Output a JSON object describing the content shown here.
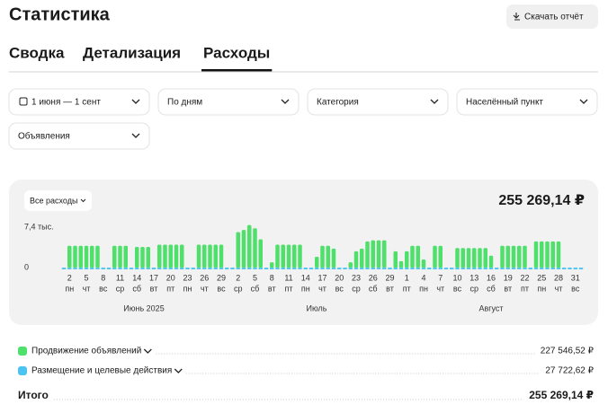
{
  "header": {
    "title": "Статистика",
    "download": "Скачать отчёт"
  },
  "tabs": {
    "items": [
      "Сводка",
      "Детализация",
      "Расходы"
    ],
    "active": 2
  },
  "filters": [
    "1 июня — 1 сент",
    "По дням",
    "Категория",
    "Населённый пункт",
    "Объявления"
  ],
  "card": {
    "dropdown": "Все расходы",
    "total": "255 269,14 ₽"
  },
  "chart_data": {
    "type": "bar",
    "stacked": true,
    "ylim": [
      0,
      8200
    ],
    "yticks": [
      0,
      {
        "value": 7400,
        "label": "7,4 тыс."
      }
    ],
    "categories": [
      null,
      "2",
      null,
      null,
      "5",
      null,
      null,
      "8",
      null,
      null,
      "11",
      null,
      null,
      "14",
      null,
      null,
      "17",
      null,
      null,
      "20",
      null,
      null,
      "23",
      null,
      null,
      "26",
      null,
      null,
      "29",
      null,
      null,
      "2",
      null,
      null,
      "5",
      null,
      null,
      "8",
      null,
      null,
      "11",
      null,
      null,
      "14",
      null,
      null,
      "17",
      null,
      null,
      "20",
      null,
      null,
      "23",
      null,
      null,
      "26",
      null,
      null,
      "29",
      null,
      null,
      "1",
      null,
      null,
      "4",
      null,
      null,
      "7",
      null,
      null,
      "10",
      null,
      null,
      "13",
      null,
      null,
      "16",
      null,
      null,
      "19",
      null,
      null,
      "22",
      null,
      null,
      "25",
      null,
      null,
      "28",
      null,
      null,
      "31",
      null
    ],
    "weekdays": [
      null,
      "пн",
      null,
      null,
      "чт",
      null,
      null,
      "вс",
      null,
      null,
      "ср",
      null,
      null,
      "сб",
      null,
      null,
      "вт",
      null,
      null,
      "пт",
      null,
      null,
      "пн",
      null,
      null,
      "чт",
      null,
      null,
      "вс",
      null,
      null,
      "ср",
      null,
      null,
      "сб",
      null,
      null,
      "вт",
      null,
      null,
      "пт",
      null,
      null,
      "пн",
      null,
      null,
      "чт",
      null,
      null,
      "вс",
      null,
      null,
      "ср",
      null,
      null,
      "сб",
      null,
      null,
      "вт",
      null,
      null,
      "пт",
      null,
      null,
      "пн",
      null,
      null,
      "чт",
      null,
      null,
      "вс",
      null,
      null,
      "ср",
      null,
      null,
      "сб",
      null,
      null,
      "вт",
      null,
      null,
      "пт",
      null,
      null,
      "пн",
      null,
      null,
      "чт",
      null,
      null,
      "вс",
      null
    ],
    "months": [
      "Июнь 2025",
      "Июль",
      "Август"
    ],
    "series": [
      {
        "name": "Размещение и целевые действия",
        "color": "#4cc3f0",
        "values": [
          300,
          300,
          300,
          300,
          300,
          300,
          300,
          300,
          300,
          300,
          300,
          300,
          300,
          300,
          300,
          300,
          300,
          300,
          300,
          300,
          300,
          300,
          300,
          300,
          300,
          300,
          300,
          300,
          300,
          300,
          300,
          300,
          300,
          300,
          300,
          300,
          300,
          300,
          300,
          300,
          300,
          300,
          300,
          300,
          300,
          300,
          300,
          300,
          300,
          300,
          300,
          300,
          300,
          300,
          300,
          300,
          300,
          300,
          300,
          300,
          300,
          300,
          300,
          300,
          300,
          300,
          300,
          300,
          300,
          300,
          300,
          300,
          300,
          300,
          300,
          300,
          300,
          300,
          300,
          300,
          300,
          300,
          300,
          300,
          300,
          300,
          300,
          300,
          300,
          300,
          300,
          300,
          300
        ]
      },
      {
        "name": "Продвижение объявлений",
        "color": "#4fe06b",
        "values": [
          0,
          4000,
          4000,
          4000,
          4000,
          4000,
          4000,
          0,
          0,
          4000,
          4000,
          4000,
          0,
          3800,
          3800,
          3800,
          0,
          4200,
          4200,
          4200,
          4200,
          4200,
          0,
          0,
          4200,
          4200,
          4200,
          4200,
          4200,
          0,
          0,
          6500,
          6900,
          7800,
          7200,
          5200,
          0,
          1000,
          4200,
          4200,
          4200,
          4200,
          4200,
          0,
          0,
          2000,
          4000,
          4000,
          3500,
          0,
          0,
          1000,
          3000,
          3500,
          4800,
          5000,
          5000,
          5000,
          0,
          3000,
          1200,
          3000,
          4000,
          4000,
          1500,
          0,
          4000,
          4000,
          0,
          0,
          3600,
          3600,
          3600,
          3600,
          3600,
          3600,
          2200,
          0,
          4000,
          4000,
          4000,
          4000,
          4000,
          0,
          4800,
          4800,
          4800,
          4800,
          4800,
          0,
          0,
          0,
          0
        ]
      }
    ]
  },
  "summary": {
    "rows": [
      {
        "name": "Продвижение объявлений",
        "amount": "227 546,52 ₽"
      },
      {
        "name": "Размещение и целевые действия",
        "amount": "27 722,62 ₽"
      }
    ],
    "total_label": "Итого",
    "total_amount": "255 269,14 ₽"
  }
}
